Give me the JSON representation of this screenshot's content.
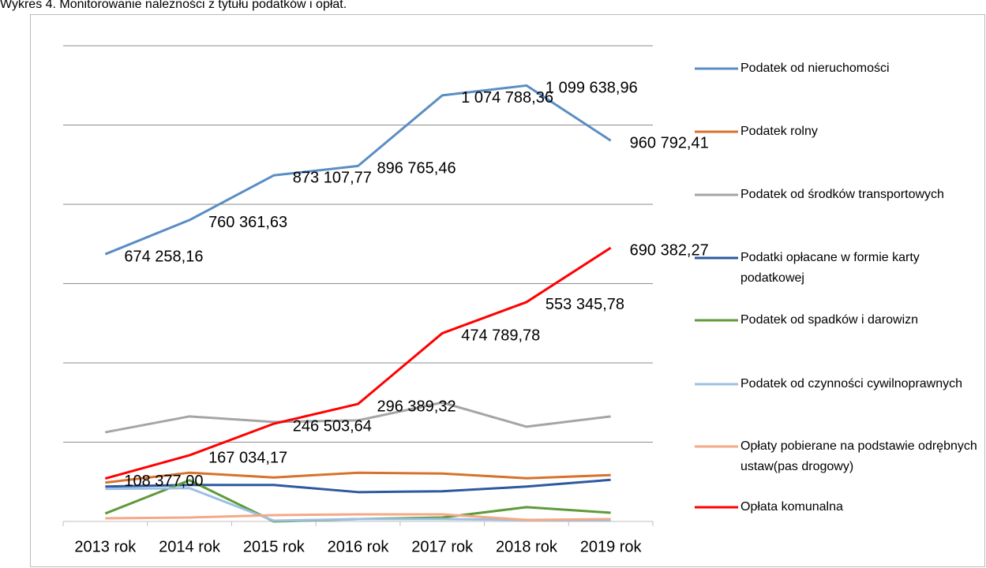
{
  "chart_data": {
    "type": "line",
    "title": "Wykres 4. Monitorowanie należności z tytułu podatków i opłat.",
    "categories": [
      "2013 rok",
      "2014 rok",
      "2015 rok",
      "2016 rok",
      "2017 rok",
      "2018 rok",
      "2019 rok"
    ],
    "ylim": [
      0,
      1200000
    ],
    "yticks": [
      0,
      200000,
      400000,
      600000,
      800000,
      1000000,
      1200000
    ],
    "grid": true,
    "show_ytick_labels": false,
    "legend": "right",
    "series": [
      {
        "name": "Podatek od nieruchomości",
        "color": "#5a8dc3",
        "values": [
          674258.16,
          760361.63,
          873107.77,
          896765.46,
          1074788.36,
          1099638.96,
          960792.41
        ],
        "value_labels": [
          "674 258,16",
          "760 361,63",
          "873 107,77",
          "896 765,46",
          "1 074 788,36",
          "1 099 638,96",
          "960 792,41"
        ]
      },
      {
        "name": "Podatek rolny",
        "color": "#d7722c",
        "values": [
          98000,
          123000,
          111000,
          123000,
          121000,
          109000,
          117000
        ]
      },
      {
        "name": "Podatek od środków transportowych",
        "color": "#a5a5a5",
        "values": [
          225000,
          265000,
          251000,
          255000,
          300000,
          239000,
          265000
        ]
      },
      {
        "name": "Podatki opłacane w formie karty podatkowej",
        "color": "#2e58a0",
        "values": [
          88000,
          92000,
          92000,
          74000,
          76000,
          88000,
          105000
        ]
      },
      {
        "name": "Podatek od spadków i darowizn",
        "color": "#5f9a3a",
        "values": [
          20000,
          104000,
          0,
          6000,
          10000,
          36000,
          22000
        ]
      },
      {
        "name": "Podatek od czynności cywilnoprawnych",
        "color": "#9cc0e4",
        "values": [
          82000,
          84000,
          2000,
          6000,
          6000,
          4000,
          2000
        ]
      },
      {
        "name": "Opłaty pobierane na podstawie odrębnych ustaw(pas drogowy)",
        "color": "#f4a988",
        "values": [
          8000,
          10000,
          16000,
          18000,
          18000,
          4000,
          6000
        ]
      },
      {
        "name": "Opłata komunalna",
        "color": "#ff0000",
        "values": [
          108377.0,
          167034.17,
          246503.64,
          296389.32,
          474789.78,
          553345.78,
          690382.27
        ],
        "value_labels": [
          "108 377,00",
          "167 034,17",
          "246 503,64",
          "296 389,32",
          "474 789,78",
          "553 345,78",
          "690 382,27"
        ]
      }
    ]
  }
}
